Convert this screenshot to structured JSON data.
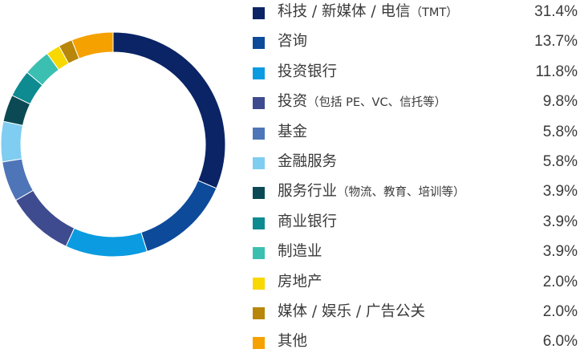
{
  "chart_data": {
    "type": "pie",
    "variant": "donut",
    "start": "12 o'clock",
    "direction": "clockwise",
    "legend_position": "right",
    "categories": [
      {
        "main": "科技 / 新媒体 / 电信",
        "sub": "（TMT）",
        "value": 31.4,
        "value_label": "31.4%",
        "color": "#0b2466"
      },
      {
        "main": "咨询",
        "sub": "",
        "value": 13.7,
        "value_label": "13.7%",
        "color": "#0d4a9a"
      },
      {
        "main": "投资银行",
        "sub": "",
        "value": 11.8,
        "value_label": "11.8%",
        "color": "#0a9be0"
      },
      {
        "main": "投资",
        "sub": "（包括 PE、VC、信托等）",
        "value": 9.8,
        "value_label": "9.8%",
        "color": "#3f4b8f"
      },
      {
        "main": "基金",
        "sub": "",
        "value": 5.8,
        "value_label": "5.8%",
        "color": "#4e75b8"
      },
      {
        "main": "金融服务",
        "sub": "",
        "value": 5.8,
        "value_label": "5.8%",
        "color": "#7fcdf0"
      },
      {
        "main": "服务行业",
        "sub": "（物流、教育、培训等）",
        "value": 3.9,
        "value_label": "3.9%",
        "color": "#0b4a55"
      },
      {
        "main": "商业银行",
        "sub": "",
        "value": 3.9,
        "value_label": "3.9%",
        "color": "#0d8b91"
      },
      {
        "main": "制造业",
        "sub": "",
        "value": 3.9,
        "value_label": "3.9%",
        "color": "#3bbfb1"
      },
      {
        "main": "房地产",
        "sub": "",
        "value": 2.0,
        "value_label": "2.0%",
        "color": "#f7d800"
      },
      {
        "main": "媒体 / 娱乐 / 广告公关",
        "sub": "",
        "value": 2.0,
        "value_label": "2.0%",
        "color": "#b8860b"
      },
      {
        "main": "其他",
        "sub": "",
        "value": 6.0,
        "value_label": "6.0%",
        "color": "#f5a100"
      }
    ]
  }
}
